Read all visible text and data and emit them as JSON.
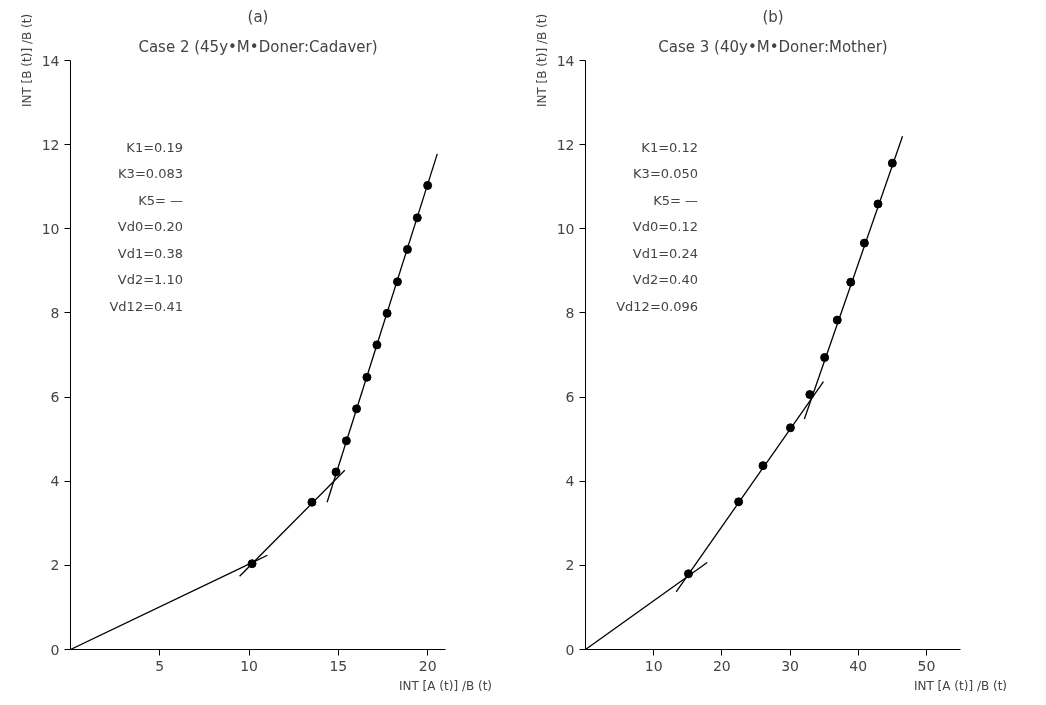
{
  "chart_data": [
    {
      "type": "scatter",
      "title": "(a)",
      "subtitle": "Case 2 (45y•M•Doner:Cadaver)",
      "xlabel": "INT [A (t)] /B (t)",
      "ylabel": "INT [B (t)] /B (t)",
      "xlim": [
        0,
        21
      ],
      "ylim": [
        0,
        14
      ],
      "xticks": [
        5,
        10,
        15,
        20
      ],
      "yticks": [
        0,
        2,
        4,
        6,
        8,
        10,
        12,
        14
      ],
      "grid": false,
      "line_style": "solid",
      "annotations": [
        "K1=0.19",
        "K3=0.083",
        "K5= —",
        "Vd0=0.20",
        "Vd1=0.38",
        "Vd2=1.10",
        "Vd12=0.41"
      ],
      "series": [
        {
          "marker": "circle",
          "color": "#000000",
          "x": [
            10.17,
            13.52,
            14.87,
            15.45,
            16.02,
            16.6,
            17.16,
            17.73,
            18.31,
            18.87,
            19.42,
            20.0
          ],
          "values": [
            2.04,
            3.5,
            4.22,
            4.96,
            5.72,
            6.47,
            7.24,
            7.99,
            8.74,
            9.51,
            10.26,
            11.03
          ]
        },
        {
          "type": "line",
          "color": "#000000",
          "x": [
            0,
            11.03
          ],
          "values": [
            0,
            2.24
          ]
        },
        {
          "type": "line",
          "color": "#000000",
          "x": [
            9.47,
            15.36
          ],
          "values": [
            1.74,
            4.26
          ]
        },
        {
          "type": "line",
          "color": "#000000",
          "x": [
            14.37,
            20.54
          ],
          "values": [
            3.5,
            11.78
          ]
        }
      ]
    },
    {
      "type": "scatter",
      "title": "(b)",
      "subtitle": "Case 3 (40y•M•Doner:Mother)",
      "xlabel": "INT [A (t)] /B (t)",
      "ylabel": "INT [B (t)] /B (t)",
      "xlim": [
        0,
        55
      ],
      "ylim": [
        0,
        14
      ],
      "xticks": [
        10,
        20,
        30,
        40,
        50
      ],
      "yticks": [
        0,
        2,
        4,
        6,
        8,
        10,
        12,
        14
      ],
      "grid": false,
      "line_style": "solid",
      "annotations": [
        "K1=0.12",
        "K3=0.050",
        "K5= —",
        "Vd0=0.12",
        "Vd1=0.24",
        "Vd2=0.40",
        "Vd12=0.096"
      ],
      "series": [
        {
          "marker": "circle",
          "color": "#000000",
          "x": [
            15.1,
            22.46,
            26.03,
            30.06,
            32.9,
            35.07,
            36.93,
            38.9,
            40.9,
            42.9,
            45.0
          ],
          "values": [
            1.8,
            3.51,
            4.37,
            5.27,
            6.06,
            6.94,
            7.83,
            8.73,
            9.66,
            10.59,
            11.56
          ]
        },
        {
          "type": "line",
          "color": "#000000",
          "x": [
            0,
            17.85
          ],
          "values": [
            0,
            2.07
          ]
        },
        {
          "type": "line",
          "color": "#000000",
          "x": [
            13.3,
            34.9
          ],
          "values": [
            1.37,
            6.37
          ]
        },
        {
          "type": "line",
          "color": "#000000",
          "x": [
            32.1,
            46.5
          ],
          "values": [
            5.48,
            12.2
          ]
        }
      ]
    }
  ]
}
